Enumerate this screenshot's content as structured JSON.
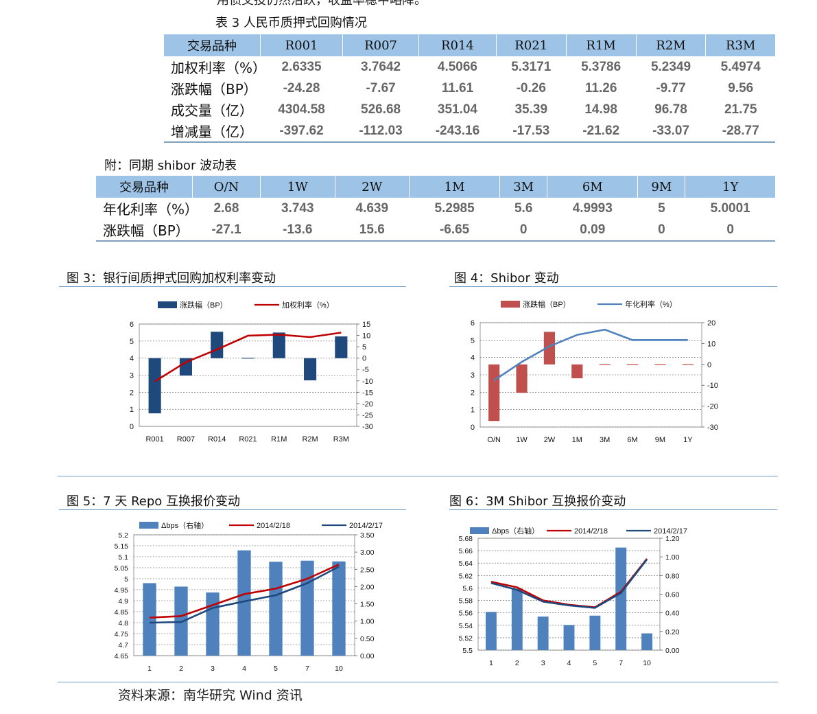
{
  "intro_fragment": "用债交投仍然活跃，收益率稳中略降。",
  "table3": {
    "caption": "表 3  人民币质押式回购情况",
    "header": [
      "交易品种",
      "R001",
      "R007",
      "R014",
      "R021",
      "R1M",
      "R2M",
      "R3M"
    ],
    "rows": [
      [
        "加权利率（%）",
        "2.6335",
        "3.7642",
        "4.5066",
        "5.3171",
        "5.3786",
        "5.2349",
        "5.4974"
      ],
      [
        "涨跌幅（BP）",
        "-24.28",
        "-7.67",
        "11.61",
        "-0.26",
        "11.26",
        "-9.77",
        "9.56"
      ],
      [
        "成交量（亿）",
        "4304.58",
        "526.68",
        "351.04",
        "35.39",
        "14.98",
        "96.78",
        "21.75"
      ],
      [
        "增减量（亿）",
        "-397.62",
        "-112.03",
        "-243.16",
        "-17.53",
        "-21.62",
        "-33.07",
        "-28.77"
      ]
    ]
  },
  "shibor_table": {
    "caption": "附：同期 shibor 波动表",
    "header": [
      "交易品种",
      "O/N",
      "1W",
      "2W",
      "1M",
      "3M",
      "6M",
      "9M",
      "1Y"
    ],
    "rows": [
      [
        "年化利率（%）",
        "2.68",
        "3.743",
        "4.639",
        "5.2985",
        "5.6",
        "4.9993",
        "5",
        "5.0001"
      ],
      [
        "涨跌幅（BP）",
        "-27.1",
        "-13.6",
        "15.6",
        "-6.65",
        "0",
        "0.09",
        "0",
        "0"
      ]
    ]
  },
  "figure_captions": {
    "fig3": "图 3：银行间质押式回购加权利率变动",
    "fig4": "图 4：Shibor 变动",
    "fig5": "图 5：7 天 Repo 互换报价变动",
    "fig6": "图 6：3M Shibor 互换报价变动"
  },
  "source": "资料来源：南华研究   Wind 资讯",
  "chart_data": [
    {
      "id": "fig3",
      "type": "bar+line",
      "categories": [
        "R001",
        "R007",
        "R014",
        "R021",
        "R1M",
        "R2M",
        "R3M"
      ],
      "series": [
        {
          "name": "涨跌幅（BP）",
          "kind": "bar",
          "axis": "right",
          "color": "#1f497d",
          "values": [
            -24.28,
            -7.67,
            11.61,
            -0.26,
            11.26,
            -9.77,
            9.56
          ]
        },
        {
          "name": "加权利率（%）",
          "kind": "line",
          "axis": "left",
          "color": "#c00000",
          "values": [
            2.6335,
            3.7642,
            4.5066,
            5.3171,
            5.3786,
            5.2349,
            5.4974
          ]
        }
      ],
      "left_ylim": [
        0,
        6
      ],
      "left_ticks": [
        "0",
        "1",
        "2",
        "3",
        "4",
        "5",
        "6"
      ],
      "right_ylim": [
        -30,
        15
      ],
      "right_ticks": [
        "-30",
        "-25",
        "-20",
        "-15",
        "-10",
        "-5",
        "0",
        "5",
        "10",
        "15"
      ]
    },
    {
      "id": "fig4",
      "type": "bar+line",
      "categories": [
        "O/N",
        "1W",
        "2W",
        "1M",
        "3M",
        "6M",
        "9M",
        "1Y"
      ],
      "series": [
        {
          "name": "涨跌幅（BP）",
          "kind": "bar",
          "axis": "right",
          "color": "#c0504d",
          "values": [
            -27.1,
            -13.6,
            15.6,
            -6.65,
            0,
            0.09,
            0,
            0
          ]
        },
        {
          "name": "年化利率（%）",
          "kind": "line",
          "axis": "left",
          "color": "#4f81bd",
          "values": [
            2.68,
            3.743,
            4.639,
            5.2985,
            5.6,
            4.9993,
            5,
            5.0001
          ]
        }
      ],
      "left_ylim": [
        0,
        6
      ],
      "left_ticks": [
        "0",
        "1",
        "2",
        "3",
        "4",
        "5",
        "6"
      ],
      "right_ylim": [
        -30,
        20
      ],
      "right_ticks": [
        "-30",
        "-20",
        "-10",
        "0",
        "10",
        "20"
      ]
    },
    {
      "id": "fig5",
      "type": "bar+line",
      "categories": [
        "1",
        "2",
        "3",
        "4",
        "5",
        "7",
        "10"
      ],
      "series": [
        {
          "name": "Δbps（右轴）",
          "kind": "bar",
          "axis": "right",
          "color": "#4f81bd",
          "values": [
            2.1,
            2.0,
            1.83,
            3.05,
            2.72,
            2.75,
            2.73
          ]
        },
        {
          "name": "2014/2/18",
          "kind": "line",
          "axis": "left",
          "color": "#c00000",
          "values": [
            4.823,
            4.83,
            4.88,
            4.93,
            4.955,
            5.0,
            5.065
          ]
        },
        {
          "name": "2014/2/17",
          "kind": "line",
          "axis": "left",
          "color": "#1f497d",
          "values": [
            4.8,
            4.803,
            4.867,
            4.897,
            4.925,
            4.98,
            5.055
          ]
        }
      ],
      "left_ylim": [
        4.65,
        5.2
      ],
      "left_ticks": [
        "4.65",
        "4.7",
        "4.75",
        "4.8",
        "4.85",
        "4.9",
        "4.95",
        "5",
        "5.05",
        "5.1",
        "5.15",
        "5.2"
      ],
      "right_ylim": [
        0,
        3.5
      ],
      "right_ticks": [
        "0.00",
        "0.50",
        "1.00",
        "1.50",
        "2.00",
        "2.50",
        "3.00",
        "3.50"
      ]
    },
    {
      "id": "fig6",
      "type": "bar+line",
      "categories": [
        "1",
        "2",
        "3",
        "4",
        "5",
        "7",
        "10"
      ],
      "series": [
        {
          "name": "Δbps（右轴）",
          "kind": "bar",
          "axis": "right",
          "color": "#4f81bd",
          "values": [
            0.41,
            0.66,
            0.36,
            0.27,
            0.37,
            1.1,
            0.18
          ]
        },
        {
          "name": "2014/2/18",
          "kind": "line",
          "axis": "left",
          "color": "#c00000",
          "values": [
            5.61,
            5.601,
            5.58,
            5.573,
            5.569,
            5.594,
            5.647
          ]
        },
        {
          "name": "2014/2/17",
          "kind": "line",
          "axis": "left",
          "color": "#1f497d",
          "values": [
            5.608,
            5.597,
            5.578,
            5.572,
            5.568,
            5.592,
            5.646
          ]
        }
      ],
      "left_ylim": [
        5.5,
        5.68
      ],
      "left_ticks": [
        "5.5",
        "5.52",
        "5.54",
        "5.56",
        "5.58",
        "5.6",
        "5.62",
        "5.64",
        "5.66",
        "5.68"
      ],
      "right_ylim": [
        0,
        1.2
      ],
      "right_ticks": [
        "0.00",
        "0.20",
        "0.40",
        "0.60",
        "0.80",
        "1.00",
        "1.20"
      ]
    }
  ]
}
